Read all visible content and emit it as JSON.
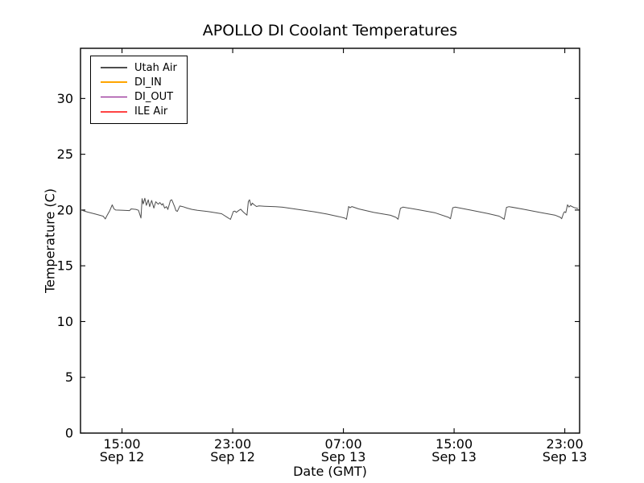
{
  "window": {
    "background": "#ffffff",
    "axis_color": "#000000"
  },
  "chart_data": {
    "type": "line",
    "title": "APOLLO DI Coolant Temperatures",
    "xlabel": "Date (GMT)",
    "ylabel": "Temperature (C)",
    "grid": false,
    "legend_position": "upper-left",
    "ylim": [
      0,
      34.5
    ],
    "xlim_hours_from_sep12_1200": [
      0,
      36.07
    ],
    "y_ticks": [
      0,
      5,
      10,
      15,
      20,
      25,
      30
    ],
    "x_ticks": [
      {
        "hours": 3,
        "time": "15:00",
        "date": "Sep 12"
      },
      {
        "hours": 11,
        "time": "23:00",
        "date": "Sep 12"
      },
      {
        "hours": 19,
        "time": "07:00",
        "date": "Sep 13"
      },
      {
        "hours": 27,
        "time": "15:00",
        "date": "Sep 13"
      },
      {
        "hours": 35,
        "time": "23:00",
        "date": "Sep 13"
      }
    ],
    "series": [
      {
        "name": "Utah Air",
        "color": "#4d4d4d",
        "points": [
          [
            0,
            20.02
          ],
          [
            0.5,
            19.82
          ],
          [
            1.1,
            19.63
          ],
          [
            1.63,
            19.45
          ],
          [
            1.72,
            19.32
          ],
          [
            1.79,
            19.2
          ],
          [
            1.95,
            19.58
          ],
          [
            2.12,
            19.95
          ],
          [
            2.29,
            20.46
          ],
          [
            2.42,
            20.1
          ],
          [
            2.55,
            20.0
          ],
          [
            3.1,
            19.97
          ],
          [
            3.55,
            19.95
          ],
          [
            3.66,
            20.1
          ],
          [
            4.0,
            20.06
          ],
          [
            4.19,
            19.98
          ],
          [
            4.28,
            19.62
          ],
          [
            4.37,
            19.28
          ],
          [
            4.45,
            21.02
          ],
          [
            4.53,
            20.54
          ],
          [
            4.65,
            21.06
          ],
          [
            4.76,
            20.42
          ],
          [
            4.9,
            20.92
          ],
          [
            5.0,
            20.3
          ],
          [
            5.14,
            20.86
          ],
          [
            5.3,
            20.17
          ],
          [
            5.44,
            20.74
          ],
          [
            5.62,
            20.52
          ],
          [
            5.73,
            20.67
          ],
          [
            5.88,
            20.45
          ],
          [
            5.96,
            20.58
          ],
          [
            6.08,
            20.17
          ],
          [
            6.22,
            20.3
          ],
          [
            6.31,
            20.05
          ],
          [
            6.5,
            20.86
          ],
          [
            6.6,
            20.92
          ],
          [
            6.8,
            20.3
          ],
          [
            6.9,
            19.94
          ],
          [
            7.0,
            19.88
          ],
          [
            7.18,
            20.36
          ],
          [
            7.4,
            20.3
          ],
          [
            7.7,
            20.17
          ],
          [
            8.05,
            20.06
          ],
          [
            8.45,
            19.98
          ],
          [
            9.3,
            19.85
          ],
          [
            10.2,
            19.67
          ],
          [
            10.6,
            19.35
          ],
          [
            10.84,
            19.16
          ],
          [
            11.05,
            19.87
          ],
          [
            11.16,
            19.9
          ],
          [
            11.26,
            19.79
          ],
          [
            11.45,
            19.97
          ],
          [
            11.58,
            20.07
          ],
          [
            11.72,
            19.88
          ],
          [
            11.84,
            19.74
          ],
          [
            12.03,
            19.54
          ],
          [
            12.13,
            20.76
          ],
          [
            12.22,
            20.92
          ],
          [
            12.32,
            20.4
          ],
          [
            12.42,
            20.62
          ],
          [
            12.52,
            20.5
          ],
          [
            12.72,
            20.32
          ],
          [
            12.9,
            20.37
          ],
          [
            13.3,
            20.34
          ],
          [
            14.1,
            20.3
          ],
          [
            14.6,
            20.25
          ],
          [
            15.7,
            20.06
          ],
          [
            16.9,
            19.84
          ],
          [
            17.8,
            19.64
          ],
          [
            18.7,
            19.4
          ],
          [
            19.1,
            19.28
          ],
          [
            19.22,
            19.17
          ],
          [
            19.38,
            20.32
          ],
          [
            19.48,
            20.2
          ],
          [
            19.62,
            20.31
          ],
          [
            20.1,
            20.1
          ],
          [
            21.2,
            19.78
          ],
          [
            22.4,
            19.53
          ],
          [
            22.8,
            19.34
          ],
          [
            22.95,
            19.17
          ],
          [
            23.12,
            20.15
          ],
          [
            23.3,
            20.26
          ],
          [
            24.45,
            20.02
          ],
          [
            25.6,
            19.76
          ],
          [
            26.6,
            19.34
          ],
          [
            26.74,
            19.22
          ],
          [
            26.9,
            20.2
          ],
          [
            27.07,
            20.26
          ],
          [
            28.2,
            19.99
          ],
          [
            29.4,
            19.7
          ],
          [
            30.25,
            19.45
          ],
          [
            30.46,
            19.3
          ],
          [
            30.62,
            19.17
          ],
          [
            30.79,
            20.24
          ],
          [
            30.97,
            20.3
          ],
          [
            32.0,
            20.07
          ],
          [
            33.16,
            19.8
          ],
          [
            34.32,
            19.53
          ],
          [
            34.68,
            19.34
          ],
          [
            34.77,
            19.22
          ],
          [
            34.92,
            19.74
          ],
          [
            34.98,
            19.84
          ],
          [
            35.07,
            19.77
          ],
          [
            35.2,
            20.47
          ],
          [
            35.3,
            20.27
          ],
          [
            35.4,
            20.39
          ],
          [
            35.68,
            20.22
          ],
          [
            35.96,
            20.14
          ]
        ]
      },
      {
        "name": "DI_IN",
        "color": "#ffa500",
        "points": []
      },
      {
        "name": "DI_OUT",
        "color": "#800080",
        "points": []
      },
      {
        "name": "ILE Air",
        "color": "#ff4444",
        "points": []
      }
    ]
  }
}
